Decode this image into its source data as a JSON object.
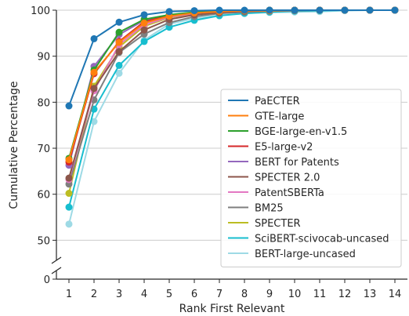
{
  "chart_data": {
    "type": "line",
    "xlabel": "Rank First Relevant",
    "ylabel": "Cumulative Percentage",
    "x": [
      1,
      2,
      3,
      4,
      5,
      6,
      7,
      8,
      9,
      10,
      11,
      12,
      13,
      14
    ],
    "x_tick_labels": [
      "1",
      "2",
      "3",
      "4",
      "5",
      "6",
      "7",
      "8",
      "9",
      "10",
      "11",
      "12",
      "13",
      "14"
    ],
    "xlim": [
      0.5,
      14.5
    ],
    "ylim": [
      47,
      100
    ],
    "y_ticks": [
      50,
      60,
      70,
      80,
      90,
      100
    ],
    "y_tick_labels": [
      "50",
      "60",
      "70",
      "80",
      "90",
      "100"
    ],
    "y_broken_axis": true,
    "y_break_tick_label": "0",
    "grid": "horizontal",
    "legend_position": "bottom-right",
    "series": [
      {
        "name": "PaECTER",
        "color": "#1f77b4",
        "values": [
          79.2,
          93.8,
          97.4,
          99.0,
          99.7,
          99.9,
          100,
          100,
          100,
          100,
          100,
          100,
          100,
          100
        ]
      },
      {
        "name": "GTE-large",
        "color": "#ff7f0e",
        "values": [
          67.5,
          86.5,
          93.0,
          97.2,
          98.7,
          99.4,
          99.7,
          99.9,
          99.9,
          100,
          100,
          100,
          100,
          100
        ]
      },
      {
        "name": "BGE-large-en-v1.5",
        "color": "#2ca02c",
        "values": [
          67.8,
          87.0,
          95.2,
          98.0,
          99.0,
          99.6,
          99.8,
          99.9,
          100,
          100,
          100,
          100,
          100,
          100
        ]
      },
      {
        "name": "E5-large-v2",
        "color": "#d62728",
        "values": [
          67.0,
          86.2,
          93.2,
          97.5,
          98.8,
          99.5,
          99.8,
          99.9,
          100,
          100,
          100,
          100,
          100,
          100
        ]
      },
      {
        "name": "BERT for Patents",
        "color": "#9467bd",
        "values": [
          66.3,
          87.8,
          94.7,
          97.8,
          98.9,
          99.5,
          99.8,
          99.9,
          100,
          100,
          100,
          100,
          100,
          100
        ]
      },
      {
        "name": "SPECTER 2.0",
        "color": "#8c564b",
        "values": [
          63.5,
          83.0,
          91.0,
          95.7,
          98.0,
          99.0,
          99.5,
          99.8,
          99.9,
          100,
          100,
          100,
          100,
          100
        ]
      },
      {
        "name": "PatentSBERTa",
        "color": "#e377c2",
        "values": [
          63.2,
          82.5,
          92.5,
          96.8,
          98.5,
          99.3,
          99.7,
          99.9,
          99.9,
          100,
          100,
          100,
          100,
          100
        ]
      },
      {
        "name": "BM25",
        "color": "#7f7f7f",
        "values": [
          62.2,
          80.5,
          90.8,
          94.8,
          97.3,
          98.6,
          99.3,
          99.6,
          99.8,
          99.9,
          100,
          100,
          100,
          100
        ]
      },
      {
        "name": "SPECTER",
        "color": "#bcbd22",
        "values": [
          60.2,
          83.5,
          92.0,
          96.5,
          98.4,
          99.2,
          99.6,
          99.8,
          99.9,
          100,
          100,
          100,
          100,
          100
        ]
      },
      {
        "name": "SciBERT-scivocab-uncased",
        "color": "#17becf",
        "values": [
          57.2,
          78.5,
          88.0,
          93.2,
          96.3,
          97.8,
          98.8,
          99.3,
          99.6,
          99.8,
          99.9,
          100,
          100,
          100
        ]
      },
      {
        "name": "BERT-large-uncased",
        "color": "#9edae5",
        "values": [
          53.5,
          75.8,
          86.3,
          93.5,
          97.0,
          98.2,
          98.9,
          99.3,
          99.5,
          99.6,
          99.7,
          99.9,
          100,
          100
        ]
      }
    ]
  }
}
